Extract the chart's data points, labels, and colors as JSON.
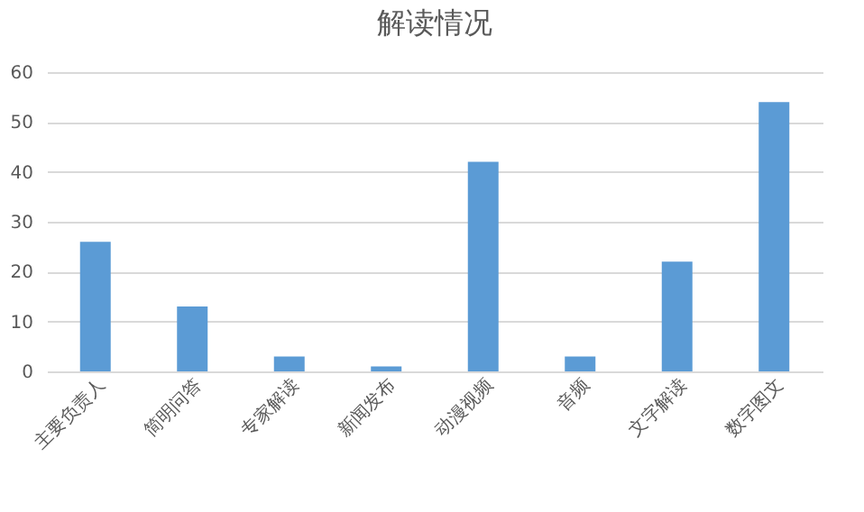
{
  "chart_data": {
    "type": "bar",
    "title": "解读情况",
    "categories": [
      "主要负责人",
      "简明问答",
      "专家解读",
      "新闻发布",
      "动漫视频",
      "音频",
      "文字解读",
      "数字图文"
    ],
    "values": [
      26,
      13,
      3,
      1,
      42,
      3,
      22,
      54
    ],
    "color": "#5b9bd5",
    "ylim": [
      0,
      60
    ],
    "yticks": [
      0,
      10,
      20,
      30,
      40,
      50,
      60
    ],
    "grid": "y"
  }
}
